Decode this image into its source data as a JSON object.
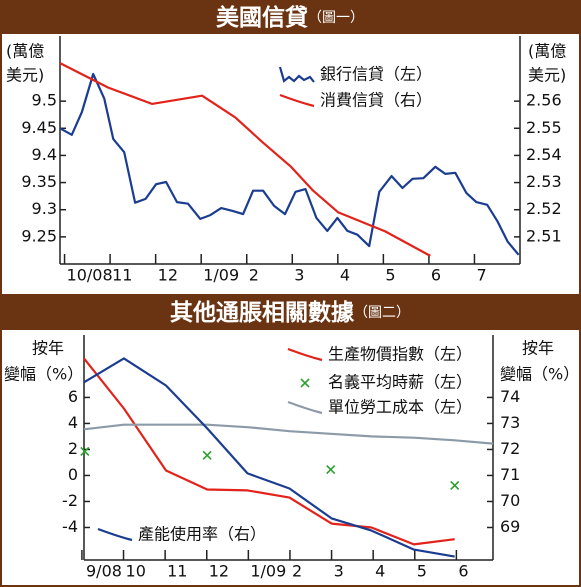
{
  "chart_data": [
    {
      "type": "line",
      "title": "美國信貸",
      "subtitle": "（圖一）",
      "ylabel": [
        "(萬億",
        "美元)"
      ],
      "y2label": [
        "(萬億",
        "美元)"
      ],
      "xlim": [
        -0.1,
        10
      ],
      "xticks": [
        {
          "value": 0,
          "label": "10/08"
        },
        {
          "value": 1,
          "label": "11"
        },
        {
          "value": 2,
          "label": "12"
        },
        {
          "value": 3,
          "label": "1/09"
        },
        {
          "value": 4,
          "label": "2"
        },
        {
          "value": 5,
          "label": "3"
        },
        {
          "value": 6,
          "label": "4"
        },
        {
          "value": 7,
          "label": "5"
        },
        {
          "value": 8,
          "label": "6"
        },
        {
          "value": 9,
          "label": "7"
        }
      ],
      "ylim": [
        9.2,
        9.62
      ],
      "yticks": [
        9.25,
        9.3,
        9.35,
        9.4,
        9.45,
        9.5
      ],
      "y2lim": [
        2.5,
        2.584
      ],
      "y2ticks": [
        2.51,
        2.52,
        2.53,
        2.54,
        2.55,
        2.56
      ],
      "series": [
        {
          "name": "銀行信貸（左）",
          "color": "#1b3d91",
          "x": [
            -0.1,
            0.16,
            0.38,
            0.63,
            0.87,
            1.07,
            1.31,
            1.55,
            1.78,
            2.01,
            2.23,
            2.47,
            2.71,
            2.98,
            3.2,
            3.44,
            3.68,
            3.92,
            4.14,
            4.36,
            4.6,
            4.84,
            5.07,
            5.29,
            5.53,
            5.77,
            5.99,
            6.21,
            6.43,
            6.69,
            6.91,
            7.18,
            7.42,
            7.64,
            7.88,
            8.14,
            8.36,
            8.58,
            8.82,
            9.04,
            9.28,
            9.51,
            9.73,
            9.97
          ],
          "values": [
            9.45,
            9.438,
            9.48,
            9.55,
            9.505,
            9.43,
            9.406,
            9.313,
            9.32,
            9.347,
            9.351,
            9.314,
            9.311,
            9.283,
            9.29,
            9.303,
            9.298,
            9.292,
            9.335,
            9.335,
            9.307,
            9.292,
            9.333,
            9.338,
            9.285,
            9.261,
            9.285,
            9.261,
            9.254,
            9.233,
            9.333,
            9.362,
            9.34,
            9.357,
            9.358,
            9.379,
            9.366,
            9.368,
            9.331,
            9.314,
            9.309,
            9.278,
            9.241,
            9.217
          ]
        },
        {
          "name": "消費信貸（右）",
          "color": "#e2231a",
          "axis": "y2",
          "x": [
            -0.1,
            0.96,
            1.92,
            3.02,
            3.75,
            4.34,
            4.96,
            5.46,
            6.01,
            7.04,
            8.03
          ],
          "values": [
            2.574,
            2.565,
            2.559,
            2.562,
            2.554,
            2.545,
            2.536,
            2.527,
            2.519,
            2.512,
            2.503
          ]
        }
      ]
    },
    {
      "type": "line",
      "title": "其他通脹相關數據",
      "subtitle": "（圖二）",
      "ylabel": [
        "按年",
        "變幅（%）"
      ],
      "y2label": [
        "按年",
        "變幅（%）"
      ],
      "xlim": [
        0.05,
        9.88
      ],
      "xticks": [
        {
          "value": 0,
          "label": "9/08"
        },
        {
          "value": 1,
          "label": "10"
        },
        {
          "value": 2,
          "label": "11"
        },
        {
          "value": 3,
          "label": "12"
        },
        {
          "value": 4,
          "label": "1/09"
        },
        {
          "value": 5,
          "label": "2"
        },
        {
          "value": 6,
          "label": "3"
        },
        {
          "value": 7,
          "label": "4"
        },
        {
          "value": 8,
          "label": "5"
        },
        {
          "value": 9,
          "label": "6"
        }
      ],
      "ylim": [
        -6.5,
        10.8
      ],
      "yticks": [
        -4,
        -2,
        0,
        2,
        4,
        6
      ],
      "y2lim": [
        67.75,
        76.4
      ],
      "y2ticks": [
        69,
        70,
        71,
        72,
        73,
        74
      ],
      "series": [
        {
          "name": "生產物價指數（左）",
          "color": "#e2231a",
          "x": [
            0.05,
            1.01,
            2.02,
            3.01,
            3.98,
            4.99,
            6.0,
            6.96,
            7.98,
            8.96
          ],
          "values": [
            9.0,
            5.15,
            0.38,
            -1.08,
            -1.15,
            -1.7,
            -3.7,
            -4.0,
            -5.3,
            -4.9
          ]
        },
        {
          "name": "名義平均時薪（左）",
          "color": "#2ca02c",
          "mode": "markers",
          "x": [
            0.07,
            3.01,
            5.98,
            8.96
          ],
          "values": [
            1.85,
            1.55,
            0.45,
            -0.77
          ]
        },
        {
          "name": "單位勞工成本（左）",
          "color": "#8d9ba8",
          "x": [
            0.05,
            1.01,
            2.02,
            3.01,
            4.02,
            4.99,
            5.98,
            6.96,
            7.98,
            8.96,
            9.88
          ],
          "values": [
            3.55,
            3.9,
            3.9,
            3.9,
            3.7,
            3.4,
            3.2,
            3.0,
            2.9,
            2.7,
            2.45
          ]
        },
        {
          "name": "產能使用率（右）",
          "color": "#1b3d91",
          "axis": "y2",
          "x": [
            0.05,
            1.01,
            2.02,
            3.01,
            3.98,
            4.99,
            6.0,
            6.96,
            7.98,
            8.96
          ],
          "values": [
            74.58,
            75.5,
            74.46,
            72.81,
            71.08,
            70.5,
            69.35,
            68.88,
            68.15,
            67.88
          ]
        }
      ]
    }
  ]
}
